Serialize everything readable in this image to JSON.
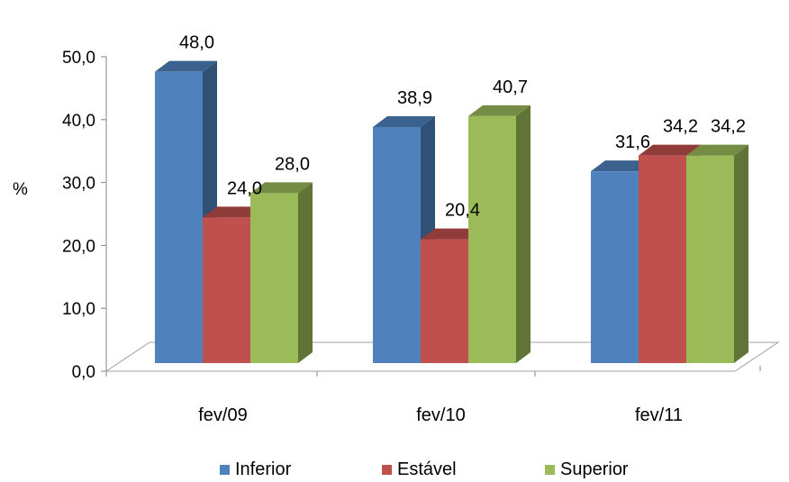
{
  "chart_data": {
    "type": "bar",
    "title": "",
    "xlabel": "",
    "ylabel": "%",
    "categories": [
      "fev/09",
      "fev/10",
      "fev/11"
    ],
    "series": [
      {
        "name": "Inferior",
        "values": [
          48.0,
          38.9,
          31.6
        ],
        "color": "#4F81BD"
      },
      {
        "name": "Estável",
        "values": [
          24.0,
          20.4,
          34.2
        ],
        "color": "#C0504D"
      },
      {
        "name": "Superior",
        "values": [
          28.0,
          40.7,
          34.2
        ],
        "color": "#9BBB59"
      }
    ],
    "ylim": [
      0,
      50
    ],
    "yticks": [
      "0,0",
      "10,0",
      "20,0",
      "30,0",
      "40,0",
      "50,0"
    ],
    "data_labels": [
      [
        "48,0",
        "38,9",
        "31,6"
      ],
      [
        "24,0",
        "20,4",
        "34,2"
      ],
      [
        "28,0",
        "40,7",
        "34,2"
      ]
    ],
    "legend_position": "bottom",
    "style": "3d-clustered-column",
    "grid": false
  }
}
